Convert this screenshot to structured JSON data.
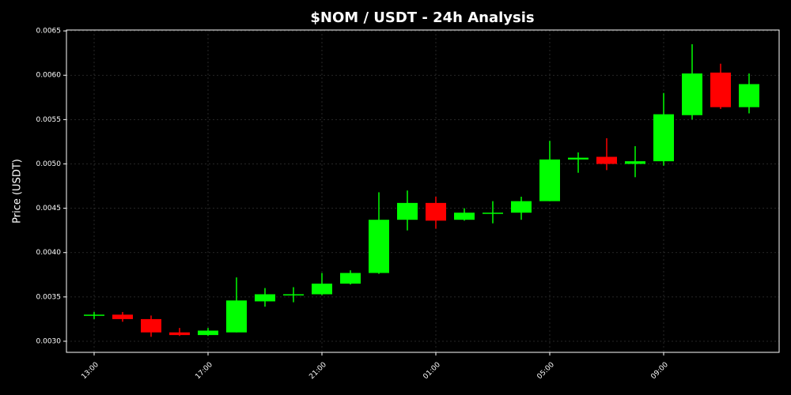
{
  "chart_data": {
    "type": "candlestick",
    "title": "$NOM / USDT - 24h Analysis",
    "y_label": "Price (USDT)",
    "categories": [
      "13:00",
      null,
      null,
      null,
      "17:00",
      null,
      null,
      null,
      "21:00",
      null,
      null,
      null,
      "01:00",
      null,
      null,
      null,
      "05:00",
      null,
      null,
      null,
      "09:00",
      null,
      null,
      null
    ],
    "open": [
      0.00329,
      0.0033,
      0.00325,
      0.0031,
      0.00307,
      0.0031,
      0.00345,
      0.00352,
      0.00353,
      0.00365,
      0.00377,
      0.00437,
      0.00456,
      0.00437,
      0.00444,
      0.00445,
      0.00458,
      0.00505,
      0.00508,
      0.005,
      0.00503,
      0.00555,
      0.00603,
      0.00564
    ],
    "high": [
      0.00333,
      0.00333,
      0.00329,
      0.00315,
      0.00315,
      0.00372,
      0.0036,
      0.00361,
      0.00377,
      0.0038,
      0.00468,
      0.0047,
      0.00463,
      0.0045,
      0.00458,
      0.00463,
      0.00526,
      0.00513,
      0.00529,
      0.0052,
      0.0058,
      0.00635,
      0.00613,
      0.00602
    ],
    "low": [
      0.00325,
      0.00322,
      0.00305,
      0.00306,
      0.00306,
      0.0031,
      0.00339,
      0.00344,
      0.00352,
      0.00364,
      0.00376,
      0.00425,
      0.00427,
      0.00436,
      0.00433,
      0.00437,
      0.00458,
      0.0049,
      0.00493,
      0.00485,
      0.00498,
      0.0055,
      0.00562,
      0.00557
    ],
    "close": [
      0.0033,
      0.00325,
      0.0031,
      0.00307,
      0.00312,
      0.00346,
      0.00353,
      0.00353,
      0.00365,
      0.00377,
      0.00437,
      0.00456,
      0.00436,
      0.00445,
      0.00445,
      0.00458,
      0.00505,
      0.00507,
      0.005,
      0.00503,
      0.00556,
      0.00602,
      0.00564,
      0.0059
    ],
    "up_color": "#00ff00",
    "down_color": "#ff0000",
    "ylim": [
      0.002875,
      0.00651
    ],
    "yticks": [
      {
        "value": 0.003,
        "label": "0.0030"
      },
      0.0035,
      {
        "value": 0.004,
        "label": "0.0040"
      },
      0.0045,
      {
        "value": 0.005,
        "label": "0.0050"
      },
      0.0055,
      {
        "value": 0.006,
        "label": "0.0060"
      },
      0.0065
    ],
    "grid": true
  }
}
